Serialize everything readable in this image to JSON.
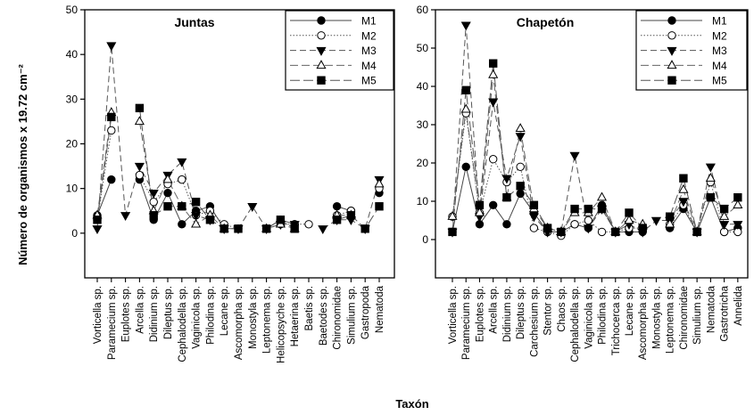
{
  "ylabel": "Número de organismos x 19.72 cm⁻²",
  "xlabel": "Taxón",
  "chart_data": [
    {
      "type": "line",
      "title": "Juntas",
      "ylim": [
        -10,
        50
      ],
      "yticks": [
        0,
        10,
        20,
        30,
        40,
        50
      ],
      "legend_position": "top-right",
      "categories": [
        "Vorticella sp.",
        "Paramecium sp.",
        "Euplotes sp.",
        "Arcella sp.",
        "Didinium sp.",
        "Dileptus sp.",
        "Cephalodella sp.",
        "Vaginicola sp.",
        "Philodina sp.",
        "Lecane sp.",
        "Ascomorpha sp.",
        "Monostyla sp.",
        "Leptonema sp.",
        "Helicopsyche sp.",
        "Hetaerina sp.",
        "Baetis sp.",
        "Baetodes sp.",
        "Chironomidae",
        "Simulium sp.",
        "Gastropoda",
        "Nematoda"
      ],
      "series": [
        {
          "name": "M1",
          "values": [
            4,
            12,
            null,
            12,
            3,
            9,
            2,
            5,
            6,
            1,
            null,
            null,
            1,
            3,
            2,
            null,
            null,
            6,
            5,
            null,
            9
          ]
        },
        {
          "name": "M2",
          "values": [
            3,
            23,
            null,
            13,
            7,
            11,
            12,
            4,
            5,
            2,
            1,
            null,
            1,
            2,
            2,
            2,
            null,
            4,
            5,
            null,
            10
          ]
        },
        {
          "name": "M3",
          "values": [
            1,
            42,
            4,
            15,
            9,
            13,
            16,
            4,
            3,
            1,
            1,
            6,
            1,
            2,
            2,
            null,
            1,
            3,
            3,
            1,
            12
          ]
        },
        {
          "name": "M4",
          "values": [
            4,
            27,
            null,
            25,
            5,
            12,
            6,
            2,
            4,
            1,
            null,
            null,
            1,
            2,
            1,
            null,
            null,
            4,
            4,
            null,
            11
          ]
        },
        {
          "name": "M5",
          "values": [
            3,
            26,
            null,
            28,
            4,
            6,
            6,
            7,
            3,
            1,
            1,
            null,
            1,
            3,
            1,
            null,
            null,
            3,
            4,
            1,
            6
          ]
        }
      ]
    },
    {
      "type": "line",
      "title": "Chapetón",
      "ylim": [
        -10,
        60
      ],
      "yticks": [
        0,
        10,
        20,
        30,
        40,
        50,
        60
      ],
      "legend_position": "top-right",
      "categories": [
        "Vorticella sp.",
        "Paramecium sp.",
        "Euplotes sp.",
        "Arcella sp.",
        "Didinium sp.",
        "Dileptus sp.",
        "Carchesium sp.",
        "Stentor sp.",
        "Chaos sp.",
        "Cephalodella sp.",
        "Vaginicola sp.",
        "Philodina sp.",
        "Trichocerca sp.",
        "Lecane sp.",
        "Ascomorpha sp.",
        "Monostyla sp.",
        "Leptonema sp.",
        "Chironomidae",
        "Simulium sp.",
        "Nematoda",
        "Gastrotricha",
        "Annelida"
      ],
      "series": [
        {
          "name": "M1",
          "values": [
            2,
            19,
            4,
            9,
            4,
            12,
            7,
            2,
            2,
            4,
            3,
            9,
            2,
            2,
            2,
            null,
            3,
            8,
            2,
            11,
            2,
            3
          ]
        },
        {
          "name": "M2",
          "values": [
            6,
            33,
            7,
            21,
            15,
            19,
            3,
            2,
            1,
            4,
            5,
            2,
            2,
            3,
            3,
            null,
            4,
            9,
            2,
            15,
            2,
            2
          ]
        },
        {
          "name": "M3",
          "values": [
            2,
            56,
            6,
            36,
            16,
            27,
            6,
            2,
            2,
            22,
            3,
            8,
            2,
            4,
            2,
            5,
            5,
            10,
            2,
            19,
            4,
            4
          ]
        },
        {
          "name": "M4",
          "values": [
            6,
            34,
            7,
            43,
            11,
            29,
            8,
            3,
            2,
            7,
            7,
            11,
            2,
            5,
            4,
            null,
            4,
            13,
            2,
            16,
            6,
            9
          ]
        },
        {
          "name": "M5",
          "values": [
            2,
            39,
            9,
            46,
            11,
            14,
            9,
            3,
            2,
            8,
            8,
            8,
            2,
            7,
            3,
            null,
            6,
            16,
            2,
            11,
            8,
            11
          ]
        }
      ]
    }
  ]
}
